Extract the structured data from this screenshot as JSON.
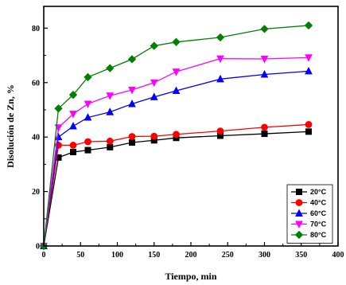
{
  "chart_data": {
    "type": "line",
    "xlabel": "Tiempo, min",
    "ylabel": "Disolución de Zn, %",
    "xlim": [
      0,
      400
    ],
    "ylim": [
      0,
      88
    ],
    "xticks": [
      0,
      50,
      100,
      150,
      200,
      250,
      300,
      350,
      400
    ],
    "xtick_labels": [
      "0",
      "50",
      "100",
      "150",
      "200",
      "250",
      "300",
      "350",
      "400"
    ],
    "yticks": [
      0,
      20,
      40,
      60,
      80
    ],
    "ytick_labels": [
      "0",
      "20",
      "40",
      "60",
      "80"
    ],
    "grid": false,
    "legend_position": "bottom-right",
    "x": [
      0,
      20,
      40,
      60,
      90,
      120,
      150,
      180,
      240,
      300,
      360
    ],
    "series": [
      {
        "name": "20°C",
        "color": "#000000",
        "marker": "square",
        "values": [
          0,
          32.5,
          34.5,
          35.2,
          36.3,
          38.0,
          38.8,
          39.7,
          40.5,
          41.2,
          42.0
        ]
      },
      {
        "name": "40°C",
        "color": "#ff0000",
        "marker": "circle",
        "values": [
          0,
          37.0,
          37.0,
          38.3,
          38.5,
          40.2,
          40.3,
          41.0,
          42.2,
          43.6,
          44.6
        ]
      },
      {
        "name": "60°C",
        "color": "#0000ff",
        "marker": "triangle-up",
        "values": [
          0,
          40.0,
          44.0,
          47.2,
          49.2,
          52.2,
          54.7,
          57.0,
          61.3,
          63.0,
          64.2
        ]
      },
      {
        "name": "70°C",
        "color": "#ff00ff",
        "marker": "triangle-down",
        "values": [
          0,
          43.5,
          48.5,
          52.2,
          55.2,
          57.3,
          60.0,
          64.0,
          68.8,
          68.7,
          69.2
        ]
      },
      {
        "name": "80°C",
        "color": "#008000",
        "marker": "diamond",
        "values": [
          0,
          50.5,
          55.5,
          62.0,
          65.3,
          68.6,
          73.5,
          74.9,
          76.6,
          79.7,
          81.0
        ]
      }
    ]
  }
}
